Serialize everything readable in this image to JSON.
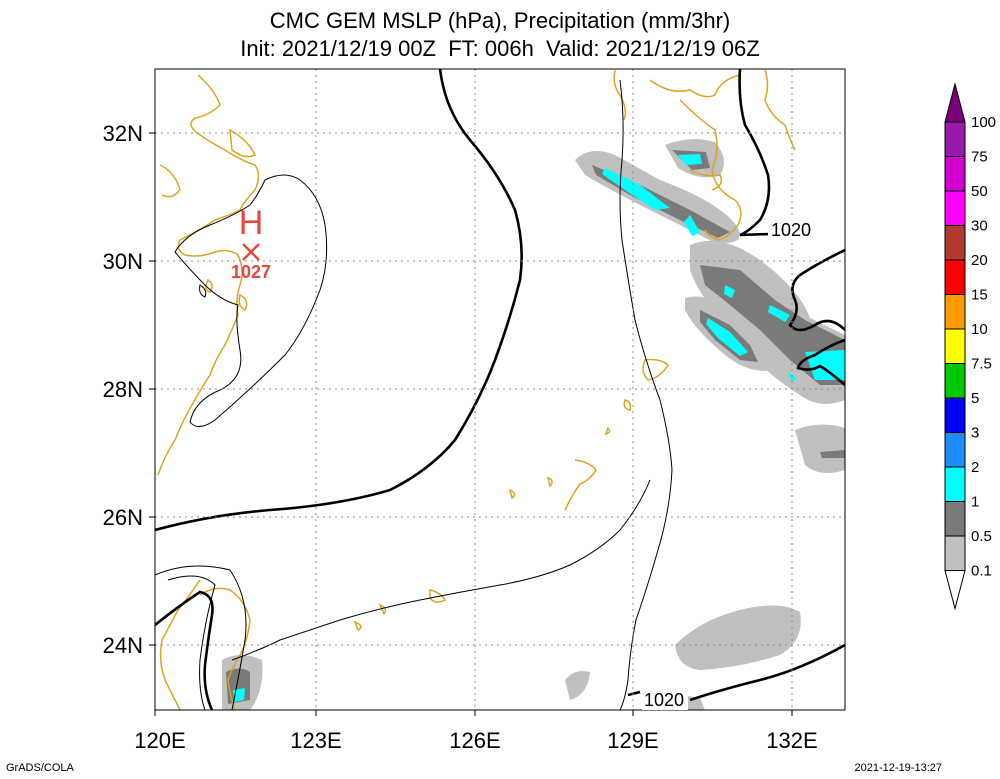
{
  "title_line1": "CMC GEM MSLP (hPa), Precipitation (mm/3hr)",
  "title_line2": "Init: 2021/12/19 00Z  FT: 006h  Valid: 2021/12/19 06Z",
  "lon_labels": [
    "120E",
    "123E",
    "126E",
    "129E",
    "132E"
  ],
  "lat_labels": [
    "32N",
    "30N",
    "28N",
    "26N",
    "24N"
  ],
  "colorbar_labels": [
    "100",
    "75",
    "50",
    "30",
    "20",
    "15",
    "10",
    "7.5",
    "5",
    "3",
    "2",
    "1",
    "0.5",
    "0.1"
  ],
  "colorbar_colors": [
    "#7a007a",
    "#9a1aae",
    "#d000d0",
    "#ff00ff",
    "#b03a2e",
    "#ff0000",
    "#ff9a00",
    "#ffff00",
    "#00c800",
    "#0000ff",
    "#1e8cff",
    "#00ffff",
    "#7a7a7a",
    "#c0c0c0",
    "#ffffff"
  ],
  "high_label": "H",
  "high_value": "1027",
  "isobar_labels": [
    "1020",
    "1020"
  ],
  "footer_left": "GrADS/COLA",
  "footer_right": "2021-12-19-13:27"
}
